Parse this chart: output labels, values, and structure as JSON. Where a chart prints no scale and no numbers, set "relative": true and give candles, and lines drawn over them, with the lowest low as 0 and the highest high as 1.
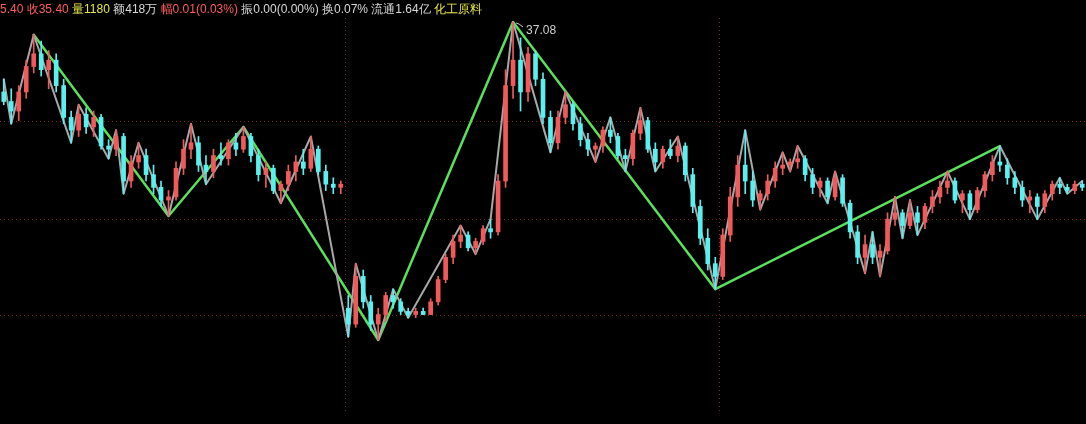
{
  "chart_data": {
    "type": "candlestick",
    "relative": true,
    "title": "5.40 收35.40 量1180 额418万 幅0.01(0.03%) 振0.00(0.00%) 换0.07% 流通1.64亿 化工原料",
    "categories": [
      null,
      null,
      null,
      null,
      null,
      null,
      null,
      null,
      null,
      null,
      null,
      null,
      null,
      null,
      null,
      null,
      null,
      null,
      null,
      null,
      null,
      null,
      null,
      null,
      null,
      null,
      null,
      null,
      null,
      null,
      null,
      null,
      null,
      null,
      null,
      null,
      null,
      null,
      null,
      null,
      null,
      null,
      null,
      null,
      null,
      null,
      null,
      null,
      null,
      null,
      null,
      null,
      null,
      null,
      null,
      null,
      null,
      null,
      null,
      null,
      null,
      null,
      null,
      null,
      null,
      null,
      null,
      null,
      null,
      null,
      null,
      null,
      null,
      null,
      null,
      null,
      null,
      null,
      null,
      null,
      null,
      null,
      null,
      null,
      null,
      null,
      null,
      null,
      null,
      null,
      null,
      null,
      null,
      null,
      null,
      null,
      null,
      null,
      null,
      null,
      null,
      null,
      null,
      null,
      null,
      null,
      null,
      null,
      null,
      null,
      null,
      null,
      null,
      null,
      null,
      null,
      null,
      null,
      null,
      null,
      null,
      null,
      null,
      null,
      null,
      null,
      null,
      null,
      null,
      null,
      null,
      null,
      null,
      null,
      null,
      null,
      null,
      null,
      null,
      null,
      null,
      null,
      null,
      null,
      null
    ],
    "ohlc": [
      [
        0.78,
        0.82,
        0.74,
        0.75
      ],
      [
        0.75,
        0.79,
        0.68,
        0.72
      ],
      [
        0.72,
        0.8,
        0.69,
        0.78
      ],
      [
        0.78,
        0.88,
        0.76,
        0.86
      ],
      [
        0.86,
        0.96,
        0.84,
        0.9
      ],
      [
        0.9,
        0.94,
        0.83,
        0.85
      ],
      [
        0.85,
        0.91,
        0.79,
        0.88
      ],
      [
        0.88,
        0.9,
        0.78,
        0.8
      ],
      [
        0.8,
        0.82,
        0.68,
        0.7
      ],
      [
        0.7,
        0.72,
        0.62,
        0.66
      ],
      [
        0.66,
        0.74,
        0.64,
        0.71
      ],
      [
        0.71,
        0.73,
        0.65,
        0.67
      ],
      [
        0.67,
        0.72,
        0.64,
        0.7
      ],
      [
        0.7,
        0.71,
        0.6,
        0.61
      ],
      [
        0.61,
        0.63,
        0.57,
        0.6
      ],
      [
        0.6,
        0.66,
        0.58,
        0.64
      ],
      [
        0.64,
        0.65,
        0.46,
        0.5
      ],
      [
        0.5,
        0.58,
        0.48,
        0.56
      ],
      [
        0.56,
        0.62,
        0.54,
        0.58
      ],
      [
        0.58,
        0.6,
        0.5,
        0.52
      ],
      [
        0.52,
        0.55,
        0.46,
        0.48
      ],
      [
        0.48,
        0.5,
        0.42,
        0.44
      ],
      [
        0.44,
        0.47,
        0.39,
        0.45
      ],
      [
        0.45,
        0.56,
        0.44,
        0.54
      ],
      [
        0.54,
        0.63,
        0.52,
        0.6
      ],
      [
        0.6,
        0.68,
        0.57,
        0.62
      ],
      [
        0.62,
        0.64,
        0.53,
        0.55
      ],
      [
        0.55,
        0.58,
        0.49,
        0.53
      ],
      [
        0.53,
        0.6,
        0.51,
        0.58
      ],
      [
        0.58,
        0.62,
        0.55,
        0.57
      ],
      [
        0.57,
        0.63,
        0.55,
        0.62
      ],
      [
        0.62,
        0.65,
        0.58,
        0.6
      ],
      [
        0.6,
        0.67,
        0.59,
        0.64
      ],
      [
        0.64,
        0.65,
        0.56,
        0.58
      ],
      [
        0.58,
        0.6,
        0.5,
        0.52
      ],
      [
        0.52,
        0.56,
        0.48,
        0.54
      ],
      [
        0.54,
        0.55,
        0.46,
        0.47
      ],
      [
        0.47,
        0.5,
        0.43,
        0.49
      ],
      [
        0.49,
        0.55,
        0.47,
        0.53
      ],
      [
        0.53,
        0.58,
        0.5,
        0.56
      ],
      [
        0.56,
        0.6,
        0.52,
        0.54
      ],
      [
        0.54,
        0.64,
        0.53,
        0.6
      ],
      [
        0.6,
        0.61,
        0.52,
        0.53
      ],
      [
        0.53,
        0.55,
        0.47,
        0.49
      ],
      [
        0.49,
        0.51,
        0.46,
        0.48
      ],
      [
        0.48,
        0.5,
        0.46,
        0.49
      ],
      [
        0.1,
        0.14,
        0.01,
        0.05
      ],
      [
        0.05,
        0.24,
        0.04,
        0.2
      ],
      [
        0.2,
        0.22,
        0.1,
        0.12
      ],
      [
        0.12,
        0.14,
        0.03,
        0.05
      ],
      [
        0.05,
        0.1,
        0.0,
        0.08
      ],
      [
        0.08,
        0.15,
        0.06,
        0.14
      ],
      [
        0.14,
        0.16,
        0.1,
        0.12
      ],
      [
        0.12,
        0.13,
        0.08,
        0.09
      ],
      [
        0.09,
        0.1,
        0.07,
        0.08
      ],
      [
        0.08,
        0.1,
        0.07,
        0.09
      ],
      [
        0.09,
        0.1,
        0.08,
        0.08
      ],
      [
        0.08,
        0.13,
        0.08,
        0.12
      ],
      [
        0.12,
        0.2,
        0.11,
        0.19
      ],
      [
        0.19,
        0.27,
        0.18,
        0.26
      ],
      [
        0.26,
        0.33,
        0.24,
        0.31
      ],
      [
        0.31,
        0.36,
        0.29,
        0.33
      ],
      [
        0.33,
        0.34,
        0.28,
        0.29
      ],
      [
        0.29,
        0.32,
        0.27,
        0.31
      ],
      [
        0.31,
        0.36,
        0.3,
        0.35
      ],
      [
        0.35,
        0.38,
        0.32,
        0.34
      ],
      [
        0.34,
        0.52,
        0.33,
        0.5
      ],
      [
        0.5,
        0.85,
        0.48,
        0.8
      ],
      [
        0.8,
        1.0,
        0.76,
        0.88
      ],
      [
        0.88,
        0.95,
        0.72,
        0.78
      ],
      [
        0.78,
        0.92,
        0.75,
        0.9
      ],
      [
        0.9,
        0.91,
        0.8,
        0.82
      ],
      [
        0.82,
        0.84,
        0.68,
        0.7
      ],
      [
        0.7,
        0.72,
        0.59,
        0.62
      ],
      [
        0.62,
        0.72,
        0.6,
        0.7
      ],
      [
        0.7,
        0.78,
        0.68,
        0.74
      ],
      [
        0.74,
        0.75,
        0.66,
        0.68
      ],
      [
        0.68,
        0.7,
        0.61,
        0.63
      ],
      [
        0.63,
        0.65,
        0.58,
        0.6
      ],
      [
        0.6,
        0.62,
        0.56,
        0.61
      ],
      [
        0.61,
        0.67,
        0.59,
        0.66
      ],
      [
        0.66,
        0.7,
        0.62,
        0.64
      ],
      [
        0.64,
        0.65,
        0.57,
        0.58
      ],
      [
        0.58,
        0.6,
        0.53,
        0.57
      ],
      [
        0.57,
        0.66,
        0.55,
        0.65
      ],
      [
        0.65,
        0.73,
        0.63,
        0.69
      ],
      [
        0.69,
        0.7,
        0.59,
        0.6
      ],
      [
        0.6,
        0.62,
        0.53,
        0.56
      ],
      [
        0.56,
        0.61,
        0.54,
        0.6
      ],
      [
        0.6,
        0.63,
        0.57,
        0.58
      ],
      [
        0.58,
        0.64,
        0.56,
        0.61
      ],
      [
        0.61,
        0.62,
        0.5,
        0.52
      ],
      [
        0.52,
        0.54,
        0.4,
        0.42
      ],
      [
        0.42,
        0.44,
        0.3,
        0.32
      ],
      [
        0.32,
        0.35,
        0.22,
        0.24
      ],
      [
        0.24,
        0.26,
        0.16,
        0.2
      ],
      [
        0.2,
        0.35,
        0.19,
        0.33
      ],
      [
        0.33,
        0.48,
        0.31,
        0.45
      ],
      [
        0.45,
        0.58,
        0.42,
        0.55
      ],
      [
        0.55,
        0.66,
        0.46,
        0.5
      ],
      [
        0.5,
        0.53,
        0.42,
        0.44
      ],
      [
        0.44,
        0.47,
        0.41,
        0.46
      ],
      [
        0.46,
        0.52,
        0.44,
        0.5
      ],
      [
        0.5,
        0.56,
        0.48,
        0.54
      ],
      [
        0.54,
        0.59,
        0.52,
        0.55
      ],
      [
        0.55,
        0.57,
        0.53,
        0.56
      ],
      [
        0.56,
        0.61,
        0.54,
        0.57
      ],
      [
        0.57,
        0.58,
        0.5,
        0.52
      ],
      [
        0.52,
        0.54,
        0.46,
        0.48
      ],
      [
        0.48,
        0.51,
        0.45,
        0.5
      ],
      [
        0.5,
        0.51,
        0.43,
        0.45
      ],
      [
        0.45,
        0.53,
        0.44,
        0.51
      ],
      [
        0.51,
        0.52,
        0.42,
        0.43
      ],
      [
        0.43,
        0.44,
        0.32,
        0.34
      ],
      [
        0.34,
        0.36,
        0.24,
        0.26
      ],
      [
        0.26,
        0.33,
        0.21,
        0.3
      ],
      [
        0.3,
        0.34,
        0.24,
        0.26
      ],
      [
        0.26,
        0.3,
        0.2,
        0.28
      ],
      [
        0.28,
        0.4,
        0.27,
        0.38
      ],
      [
        0.38,
        0.45,
        0.36,
        0.4
      ],
      [
        0.4,
        0.41,
        0.32,
        0.36
      ],
      [
        0.36,
        0.44,
        0.35,
        0.4
      ],
      [
        0.4,
        0.42,
        0.33,
        0.37
      ],
      [
        0.37,
        0.43,
        0.35,
        0.42
      ],
      [
        0.42,
        0.47,
        0.4,
        0.45
      ],
      [
        0.45,
        0.5,
        0.43,
        0.48
      ],
      [
        0.48,
        0.53,
        0.46,
        0.5
      ],
      [
        0.5,
        0.51,
        0.43,
        0.44
      ],
      [
        0.44,
        0.47,
        0.4,
        0.46
      ],
      [
        0.46,
        0.47,
        0.38,
        0.41
      ],
      [
        0.41,
        0.48,
        0.4,
        0.47
      ],
      [
        0.47,
        0.53,
        0.45,
        0.52
      ],
      [
        0.52,
        0.58,
        0.5,
        0.56
      ],
      [
        0.56,
        0.61,
        0.53,
        0.55
      ],
      [
        0.55,
        0.57,
        0.49,
        0.51
      ],
      [
        0.51,
        0.53,
        0.46,
        0.48
      ],
      [
        0.48,
        0.5,
        0.42,
        0.44
      ],
      [
        0.44,
        0.47,
        0.4,
        0.45
      ],
      [
        0.45,
        0.46,
        0.38,
        0.42
      ],
      [
        0.42,
        0.47,
        0.4,
        0.46
      ],
      [
        0.46,
        0.5,
        0.44,
        0.49
      ],
      [
        0.49,
        0.51,
        0.46,
        0.48
      ],
      [
        0.48,
        0.49,
        0.46,
        0.47
      ],
      [
        0.47,
        0.5,
        0.46,
        0.49
      ],
      [
        0.49,
        0.5,
        0.47,
        0.48
      ]
    ],
    "colors": [
      "#5af0f0",
      "#5af0f0",
      "#f05a5a",
      "#f05a5a",
      "#f05a5a",
      "#5af0f0",
      "#f05a5a",
      "#5af0f0",
      "#5af0f0",
      "#5af0f0",
      "#f05a5a",
      "#5af0f0",
      "#f05a5a",
      "#5af0f0",
      "#5af0f0",
      "#f05a5a",
      "#5af0f0",
      "#f05a5a",
      "#f05a5a",
      "#5af0f0",
      "#5af0f0",
      "#5af0f0",
      "#f05a5a",
      "#f05a5a",
      "#f05a5a",
      "#f05a5a",
      "#5af0f0",
      "#5af0f0",
      "#f05a5a",
      "#5af0f0",
      "#f05a5a",
      "#5af0f0",
      "#f05a5a",
      "#5af0f0",
      "#5af0f0",
      "#f05a5a",
      "#5af0f0",
      "#f05a5a",
      "#f05a5a",
      "#f05a5a",
      "#5af0f0",
      "#f05a5a",
      "#5af0f0",
      "#5af0f0",
      "#5af0f0",
      "#f05a5a",
      "#5af0f0",
      "#f05a5a",
      "#5af0f0",
      "#5af0f0",
      "#f05a5a",
      "#f05a5a",
      "#5af0f0",
      "#5af0f0",
      "#5af0f0",
      "#f05a5a",
      "#5af0f0",
      "#f05a5a",
      "#f05a5a",
      "#f05a5a",
      "#f05a5a",
      "#f05a5a",
      "#5af0f0",
      "#f05a5a",
      "#f05a5a",
      "#5af0f0",
      "#f05a5a",
      "#f05a5a",
      "#f05a5a",
      "#5af0f0",
      "#f05a5a",
      "#5af0f0",
      "#5af0f0",
      "#5af0f0",
      "#f05a5a",
      "#f05a5a",
      "#5af0f0",
      "#5af0f0",
      "#5af0f0",
      "#f05a5a",
      "#f05a5a",
      "#5af0f0",
      "#5af0f0",
      "#5af0f0",
      "#f05a5a",
      "#f05a5a",
      "#5af0f0",
      "#5af0f0",
      "#f05a5a",
      "#5af0f0",
      "#f05a5a",
      "#5af0f0",
      "#5af0f0",
      "#5af0f0",
      "#5af0f0",
      "#5af0f0",
      "#f05a5a",
      "#f05a5a",
      "#f05a5a",
      "#5af0f0",
      "#5af0f0",
      "#f05a5a",
      "#f05a5a",
      "#f05a5a",
      "#f05a5a",
      "#f05a5a",
      "#f05a5a",
      "#5af0f0",
      "#5af0f0",
      "#f05a5a",
      "#5af0f0",
      "#f05a5a",
      "#5af0f0",
      "#5af0f0",
      "#5af0f0",
      "#f05a5a",
      "#5af0f0",
      "#f05a5a",
      "#f05a5a",
      "#f05a5a",
      "#5af0f0",
      "#f05a5a",
      "#5af0f0",
      "#f05a5a",
      "#f05a5a",
      "#f05a5a",
      "#f05a5a",
      "#5af0f0",
      "#f05a5a",
      "#5af0f0",
      "#f05a5a",
      "#f05a5a",
      "#f05a5a",
      "#5af0f0",
      "#5af0f0",
      "#5af0f0",
      "#5af0f0",
      "#f05a5a",
      "#5af0f0",
      "#f05a5a",
      "#f05a5a",
      "#5af0f0",
      "#5af0f0",
      "#f05a5a",
      "#5af0f0"
    ],
    "series": [
      {
        "type": "line",
        "color": "#5ae05a",
        "values": [
          null,
          null,
          null,
          null,
          0.96,
          null,
          null,
          null,
          null,
          null,
          null,
          null,
          null,
          null,
          null,
          null,
          null,
          null,
          null,
          null,
          null,
          null,
          0.39,
          null,
          null,
          null,
          null,
          null,
          null,
          null,
          null,
          null,
          0.67,
          null,
          null,
          null,
          null,
          null,
          null,
          null,
          null,
          null,
          null,
          null,
          null,
          null,
          null,
          null,
          null,
          null,
          0,
          null,
          null,
          null,
          null,
          null,
          null,
          null,
          null,
          null,
          null,
          null,
          null,
          null,
          null,
          null,
          null,
          null,
          1,
          null,
          null,
          null,
          null,
          null,
          null,
          null,
          null,
          null,
          null,
          null,
          null,
          null,
          null,
          null,
          null,
          null,
          null,
          null,
          null,
          null,
          null,
          null,
          null,
          null,
          null,
          0.16,
          null,
          null,
          null,
          null,
          null,
          null,
          null,
          null,
          null,
          null,
          null,
          null,
          null,
          null,
          null,
          null,
          null,
          null,
          null,
          null,
          null,
          null,
          null,
          null,
          null,
          null,
          null,
          null,
          null,
          null,
          null,
          null,
          null,
          null,
          null,
          null,
          null,
          0.61,
          null,
          null,
          null,
          null,
          null,
          null,
          null,
          null,
          null,
          null,
          null
        ]
      },
      {
        "type": "line",
        "color": "#a8a8a8",
        "values": [
          0.82,
          0.68,
          null,
          null,
          0.96,
          null,
          null,
          null,
          null,
          0.62,
          0.74,
          null,
          null,
          null,
          0.57,
          0.66,
          0.46,
          null,
          0.62,
          null,
          null,
          null,
          0.39,
          null,
          null,
          0.68,
          null,
          0.49,
          null,
          null,
          null,
          null,
          0.67,
          null,
          null,
          null,
          null,
          0.43,
          null,
          null,
          null,
          0.64,
          null,
          null,
          null,
          null,
          0.01,
          0.24,
          null,
          null,
          0,
          null,
          0.16,
          null,
          0.07,
          null,
          null,
          null,
          null,
          null,
          null,
          0.36,
          null,
          0.27,
          null,
          0.38,
          null,
          null,
          1,
          null,
          null,
          null,
          null,
          0.59,
          null,
          0.78,
          null,
          null,
          null,
          0.56,
          null,
          0.7,
          null,
          0.53,
          null,
          0.73,
          null,
          0.53,
          null,
          null,
          0.64,
          null,
          null,
          null,
          null,
          0.16,
          null,
          null,
          null,
          0.66,
          null,
          0.41,
          null,
          null,
          0.59,
          0.53,
          0.61,
          null,
          null,
          null,
          0.43,
          0.53,
          null,
          null,
          null,
          0.21,
          0.34,
          0.2,
          null,
          0.45,
          0.32,
          0.44,
          0.33,
          null,
          null,
          null,
          0.53,
          null,
          null,
          0.38,
          null,
          null,
          null,
          0.61,
          null,
          null,
          null,
          null,
          0.38,
          null,
          null,
          0.51,
          0.46,
          null,
          0.5
        ]
      }
    ],
    "marker": "none",
    "ref_lines": [
      {
        "axis": "y",
        "value": 0.69,
        "color": "#7a2020",
        "line_style": "dotted"
      },
      {
        "axis": "y",
        "value": 0.38,
        "color": "#7a2020",
        "line_style": "dotted"
      },
      {
        "axis": "y",
        "value": 0.08,
        "color": "#7a2020",
        "line_style": "dotted"
      }
    ],
    "annotations": [
      "37.08"
    ]
  }
}
